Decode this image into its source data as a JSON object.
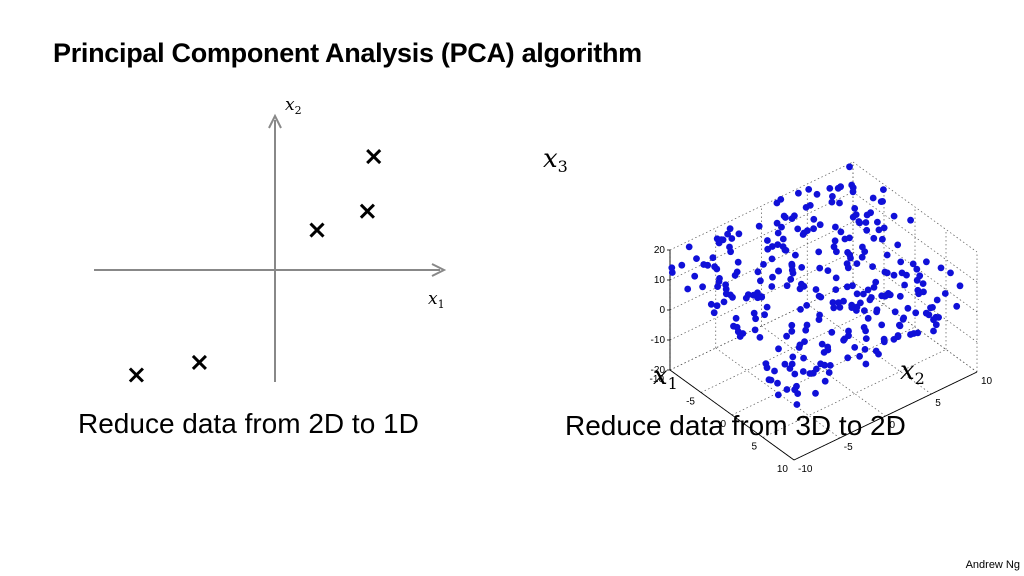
{
  "slide": {
    "title": "Principal Component Analysis (PCA) algorithm",
    "footer": "Andrew Ng"
  },
  "chart_data": [
    {
      "type": "scatter",
      "marker": "x",
      "caption": "Reduce data from 2D to 1D",
      "xlabel": "x",
      "xlabel_sub": "1",
      "ylabel": "x",
      "ylabel_sub": "2",
      "grid": false,
      "points": [
        {
          "x": 1.0,
          "y": 0.95
        },
        {
          "x": 2.2,
          "y": 1.4
        },
        {
          "x": 2.35,
          "y": 2.7
        },
        {
          "x": -1.8,
          "y": -2.2
        },
        {
          "x": -3.3,
          "y": -2.5
        }
      ]
    },
    {
      "type": "scatter3d",
      "caption": "Reduce data from 3D to 2D",
      "xlabel": "x",
      "xlabel_sub": "1",
      "ylabel": "x",
      "ylabel_sub": "2",
      "zlabel": "x",
      "zlabel_sub": "3",
      "grid": true,
      "x_ticks": [
        "-10",
        "-5",
        "0",
        "5",
        "10"
      ],
      "y_ticks": [
        "-10",
        "-5",
        "0",
        "5",
        "10"
      ],
      "z_ticks": [
        "20",
        "10",
        "0",
        "-10",
        "-20"
      ],
      "xlim": [
        -10,
        10
      ],
      "ylim": [
        -10,
        10
      ],
      "zlim": [
        -20,
        20
      ],
      "point_color": "#1010d8",
      "point_count": 300
    }
  ]
}
